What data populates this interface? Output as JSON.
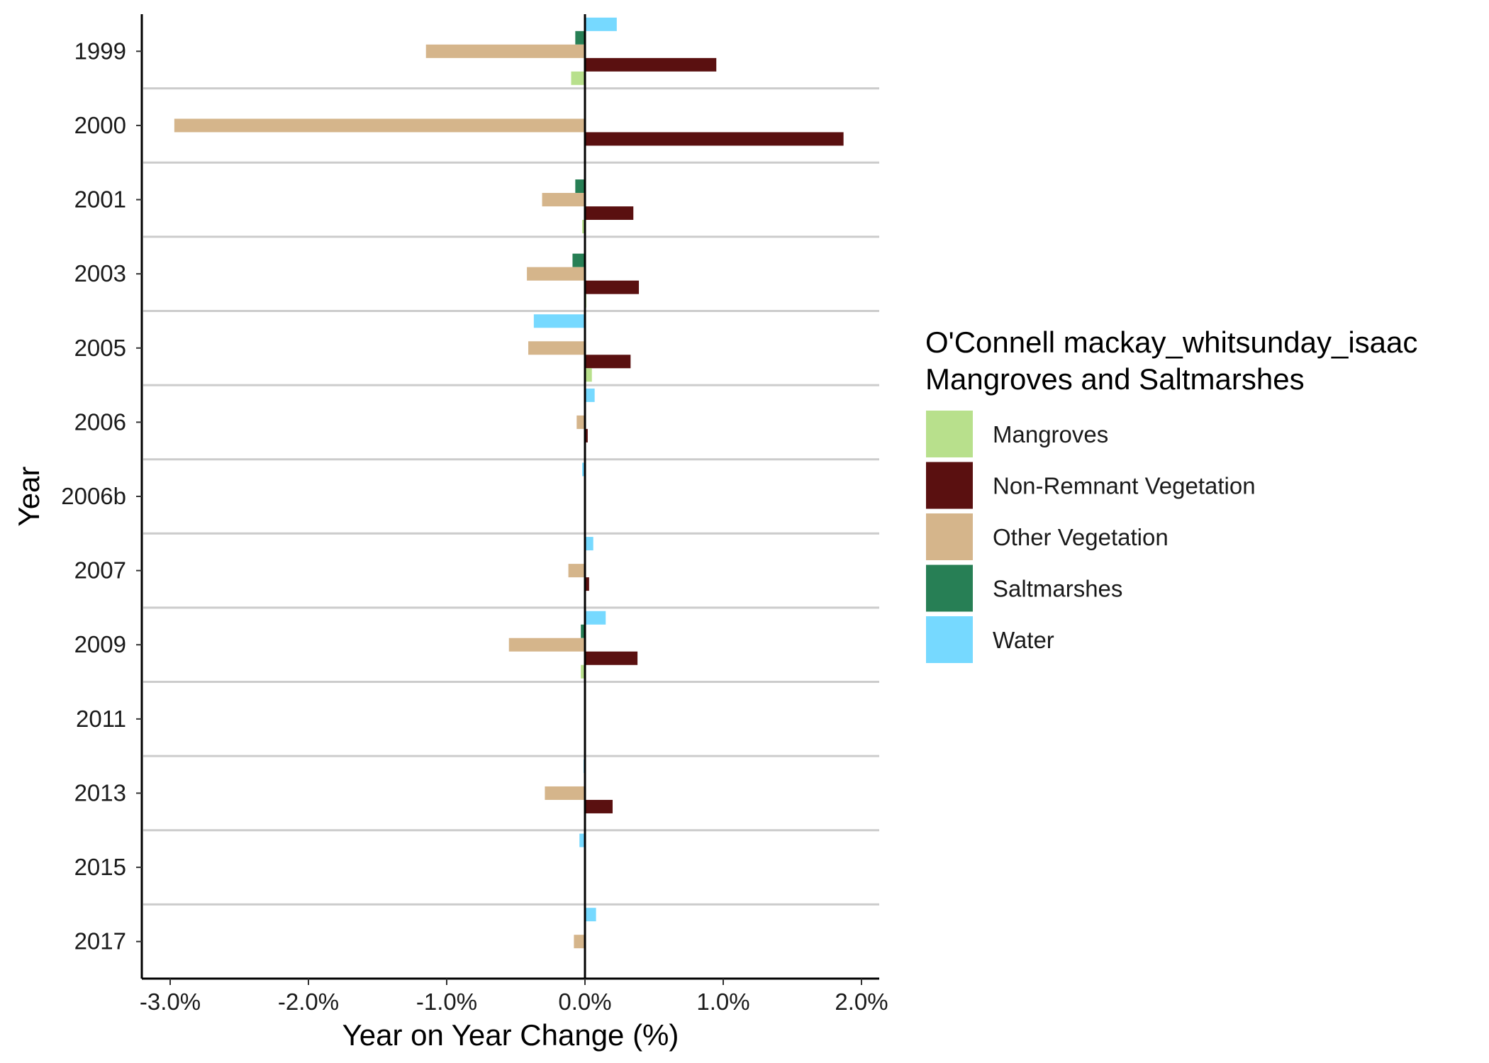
{
  "chart_data": {
    "type": "bar",
    "orientation": "horizontal",
    "xlabel": "Year on Year Change (%)",
    "ylabel": "Year",
    "xlim": [
      -3.2,
      2.1
    ],
    "x_ticks": [
      -3.0,
      -2.0,
      -1.0,
      0.0,
      1.0,
      2.0
    ],
    "x_tick_labels": [
      "-3.0%",
      "-2.0%",
      "-1.0%",
      "0.0%",
      "1.0%",
      "2.0%"
    ],
    "grid": "horizontal separators between years",
    "legend": {
      "position": "right",
      "title_lines": [
        "O'Connell mackay_whitsunday_isaac",
        "Mangroves and Saltmarshes"
      ]
    },
    "categories": [
      "1999",
      "2000",
      "2001",
      "2003",
      "2005",
      "2006",
      "2006b",
      "2007",
      "2009",
      "2011",
      "2013",
      "2015",
      "2017"
    ],
    "series": [
      {
        "name": "Water",
        "color": "#76D9FF",
        "values": [
          0.23,
          0,
          0,
          0,
          -0.37,
          0.07,
          -0.02,
          0.06,
          0.15,
          0,
          -0.01,
          -0.04,
          0.08
        ]
      },
      {
        "name": "Saltmarshes",
        "color": "#277F55",
        "values": [
          -0.07,
          0,
          -0.07,
          -0.09,
          0,
          0,
          0,
          0,
          -0.03,
          0,
          0,
          0,
          0
        ]
      },
      {
        "name": "Other Vegetation",
        "color": "#D5B58B",
        "values": [
          -1.15,
          -2.97,
          -0.31,
          -0.42,
          -0.41,
          -0.06,
          0,
          -0.12,
          -0.55,
          0,
          -0.29,
          0,
          -0.08
        ]
      },
      {
        "name": "Non-Remnant Vegetation",
        "color": "#5A1010",
        "values": [
          0.95,
          1.87,
          0.35,
          0.39,
          0.33,
          0.02,
          0,
          0.03,
          0.38,
          0,
          0.2,
          0,
          0
        ]
      },
      {
        "name": "Mangroves",
        "color": "#B8E08C",
        "values": [
          -0.1,
          0,
          -0.02,
          0.01,
          0.05,
          0,
          0,
          0,
          -0.03,
          0,
          0,
          0,
          0
        ]
      }
    ],
    "legend_order": [
      "Mangroves",
      "Non-Remnant Vegetation",
      "Other Vegetation",
      "Saltmarshes",
      "Water"
    ]
  }
}
